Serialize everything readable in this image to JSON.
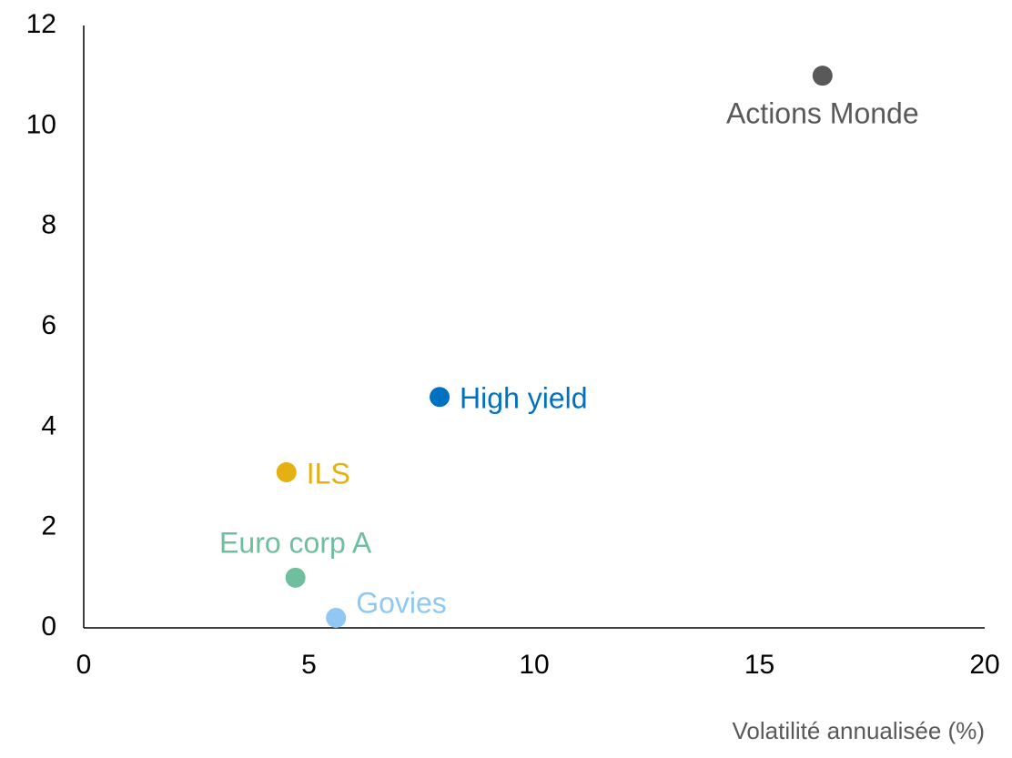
{
  "chart_data": {
    "type": "scatter",
    "x_label": "Volatilité annualisée (%)",
    "xlim": [
      0,
      20
    ],
    "xticks": [
      0,
      5,
      10,
      15,
      20
    ],
    "ylim": [
      0,
      12
    ],
    "yticks": [
      0,
      2,
      4,
      6,
      8,
      10,
      12
    ],
    "grid": false,
    "series": [
      {
        "name": "Actions Monde",
        "color": "#595959",
        "x": [
          16.4
        ],
        "values": [
          11.0
        ]
      },
      {
        "name": "High yield",
        "color": "#0070c0",
        "x": [
          7.9
        ],
        "values": [
          4.6
        ]
      },
      {
        "name": "ILS",
        "color": "#e6b012",
        "x": [
          4.5
        ],
        "values": [
          3.1
        ]
      },
      {
        "name": "Euro corp A",
        "color": "#6fbf9f",
        "x": [
          4.7
        ],
        "values": [
          1.0
        ]
      },
      {
        "name": "Govies",
        "color": "#8fc8f5",
        "x": [
          5.6
        ],
        "values": [
          0.2
        ]
      }
    ]
  }
}
